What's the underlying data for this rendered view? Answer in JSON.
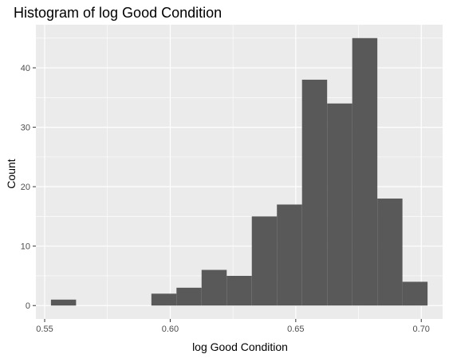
{
  "chart_data": {
    "type": "bar",
    "title": "Histogram of log Good Condition",
    "xlabel": "log Good Condition",
    "ylabel": "Count",
    "bins": [
      {
        "x0": 0.5525,
        "x1": 0.5625,
        "count": 1
      },
      {
        "x0": 0.5625,
        "x1": 0.5725,
        "count": 0
      },
      {
        "x0": 0.5725,
        "x1": 0.5825,
        "count": 0
      },
      {
        "x0": 0.5825,
        "x1": 0.5925,
        "count": 0
      },
      {
        "x0": 0.5925,
        "x1": 0.6025,
        "count": 2
      },
      {
        "x0": 0.6025,
        "x1": 0.6125,
        "count": 3
      },
      {
        "x0": 0.6125,
        "x1": 0.6225,
        "count": 6
      },
      {
        "x0": 0.6225,
        "x1": 0.6325,
        "count": 5
      },
      {
        "x0": 0.6325,
        "x1": 0.6425,
        "count": 15
      },
      {
        "x0": 0.6425,
        "x1": 0.6525,
        "count": 17
      },
      {
        "x0": 0.6525,
        "x1": 0.6625,
        "count": 38
      },
      {
        "x0": 0.6625,
        "x1": 0.6725,
        "count": 34
      },
      {
        "x0": 0.6725,
        "x1": 0.6825,
        "count": 45
      },
      {
        "x0": 0.6825,
        "x1": 0.6925,
        "count": 18
      },
      {
        "x0": 0.6925,
        "x1": 0.7025,
        "count": 4
      }
    ],
    "xlim": [
      0.5465,
      0.7085
    ],
    "ylim": [
      -2.25,
      47.25
    ],
    "x_ticks": [
      0.55,
      0.6,
      0.65,
      0.7
    ],
    "x_tick_labels": [
      "0.55",
      "0.60",
      "0.65",
      "0.70"
    ],
    "y_ticks": [
      0,
      10,
      20,
      30,
      40
    ],
    "y_tick_labels": [
      "0",
      "10",
      "20",
      "30",
      "40"
    ],
    "grid": true,
    "colors": {
      "panel": "#ebebeb",
      "grid_major": "#ffffff",
      "bar": "#595959",
      "tick": "#333333"
    }
  }
}
